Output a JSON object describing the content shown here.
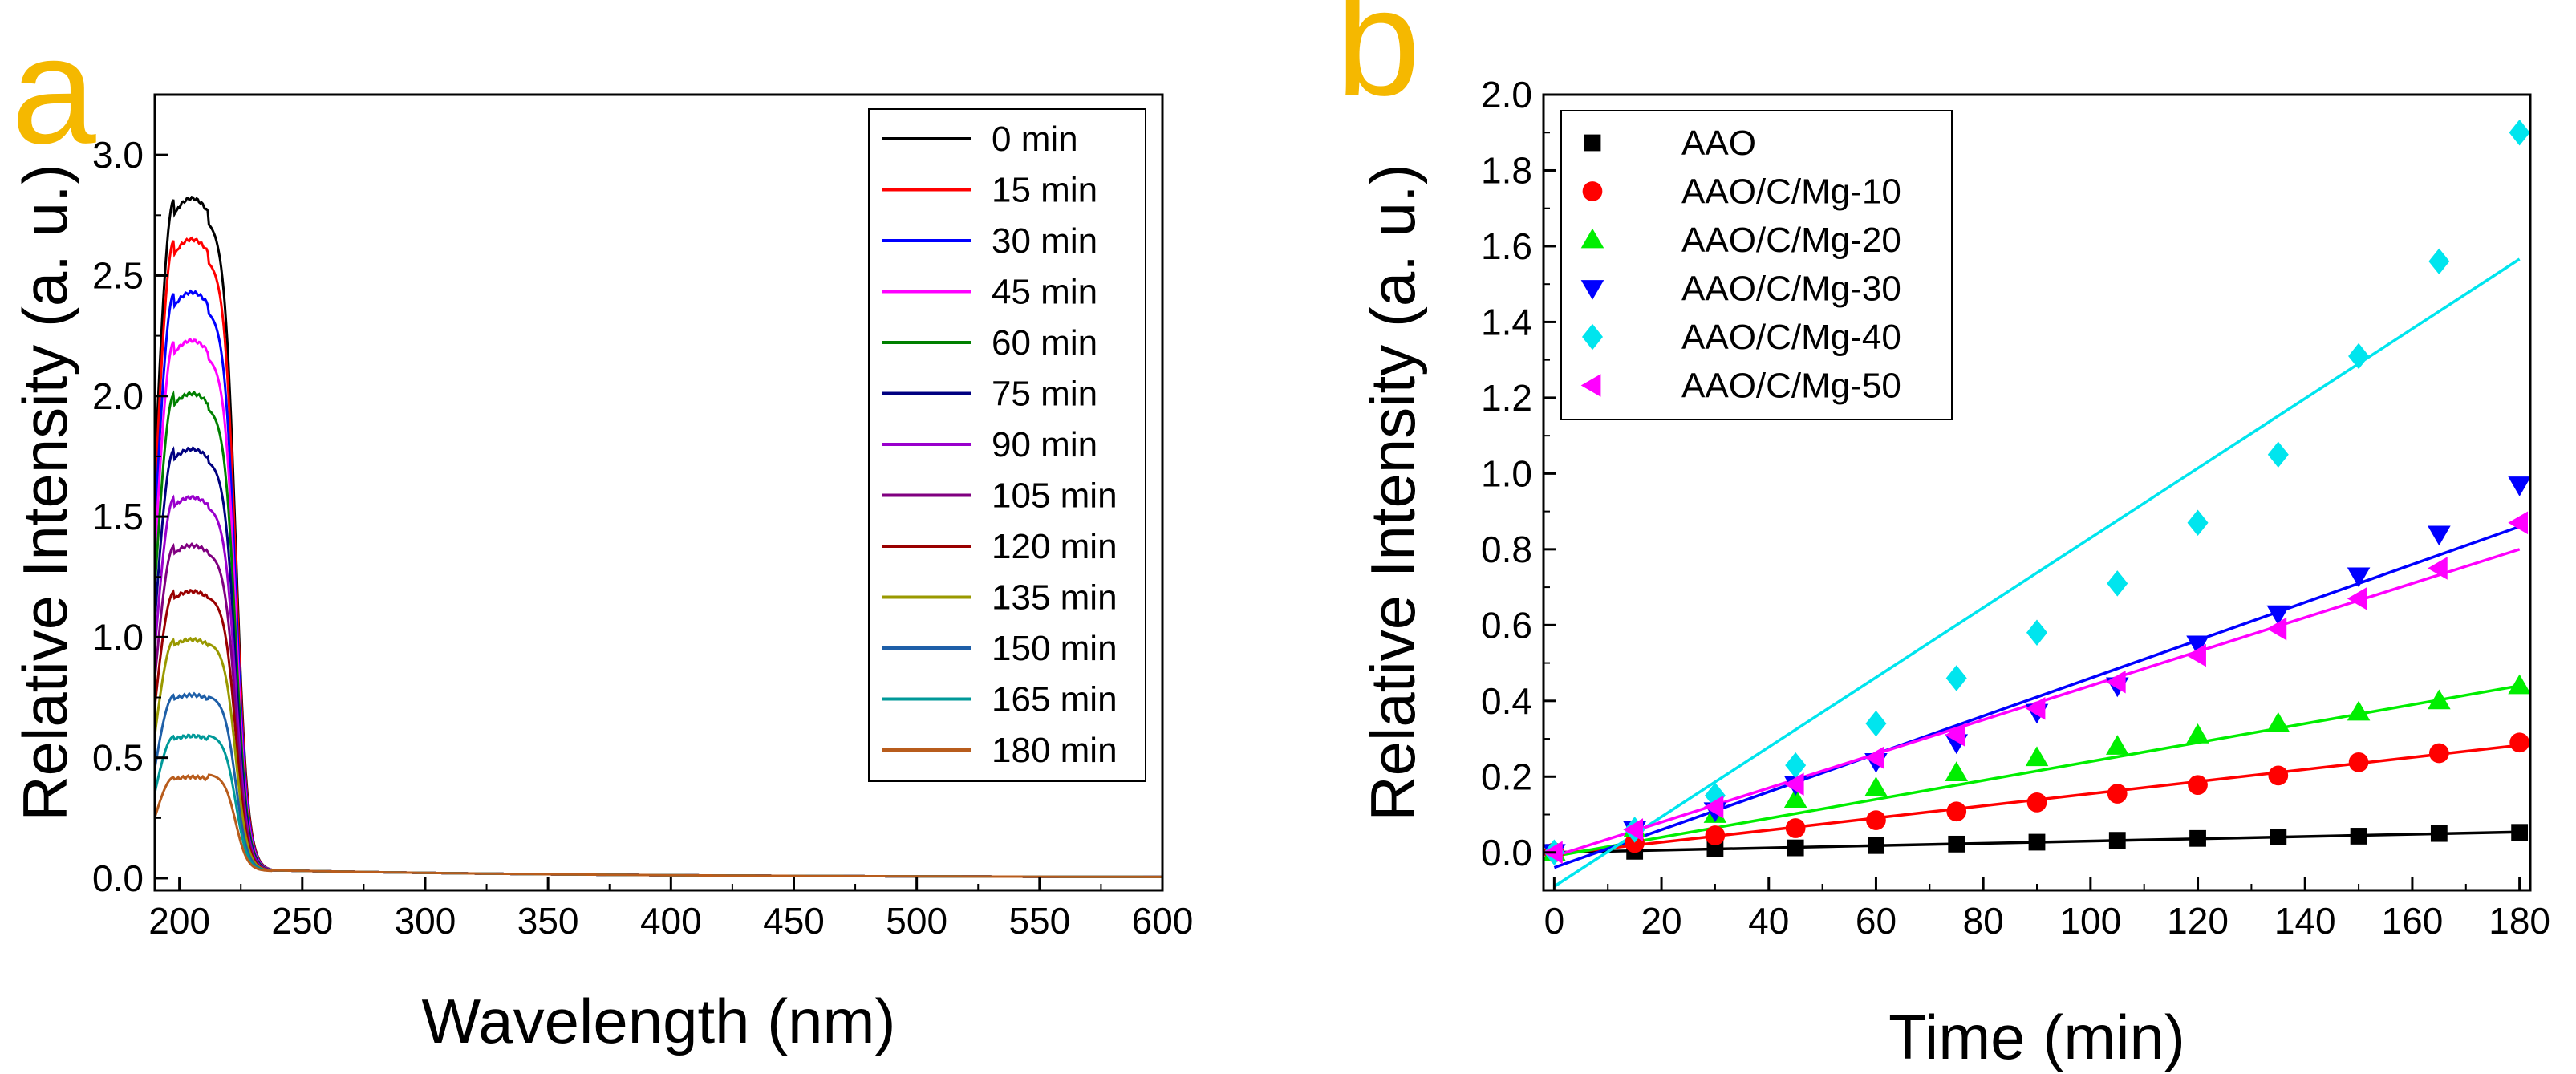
{
  "figure": {
    "panel_a_letter": "a",
    "panel_b_letter": "b",
    "accent_color": "#f5b800"
  },
  "chart_data": [
    {
      "id": "a",
      "type": "line",
      "title": "",
      "xlabel": "Wavelength (nm)",
      "ylabel": "Relative Intensity (a. u.)",
      "xlim": [
        190,
        600
      ],
      "ylim": [
        -0.05,
        3.25
      ],
      "xticks": [
        200,
        250,
        300,
        350,
        400,
        450,
        500,
        550,
        600
      ],
      "yticks": [
        0.0,
        0.5,
        1.0,
        1.5,
        2.0,
        2.5,
        3.0
      ],
      "xtick_labels": [
        "200",
        "250",
        "300",
        "350",
        "400",
        "450",
        "500",
        "550",
        "600"
      ],
      "ytick_labels": [
        "0.0",
        "0.5",
        "1.0",
        "1.5",
        "2.0",
        "2.5",
        "3.0"
      ],
      "grid": false,
      "legend_position": "top-right",
      "series": [
        {
          "name": "0 min",
          "color": "#000000",
          "peak": 2.82
        },
        {
          "name": "15 min",
          "color": "#ff0000",
          "peak": 2.65
        },
        {
          "name": "30 min",
          "color": "#0000ff",
          "peak": 2.43
        },
        {
          "name": "45 min",
          "color": "#ff00ff",
          "peak": 2.23
        },
        {
          "name": "60 min",
          "color": "#008000",
          "peak": 2.01
        },
        {
          "name": "75 min",
          "color": "#000080",
          "peak": 1.78
        },
        {
          "name": "90 min",
          "color": "#9900cc",
          "peak": 1.58
        },
        {
          "name": "105 min",
          "color": "#800080",
          "peak": 1.38
        },
        {
          "name": "120 min",
          "color": "#990000",
          "peak": 1.19
        },
        {
          "name": "135 min",
          "color": "#999900",
          "peak": 0.99
        },
        {
          "name": "150 min",
          "color": "#1e5fa8",
          "peak": 0.76
        },
        {
          "name": "165 min",
          "color": "#009999",
          "peak": 0.59
        },
        {
          "name": "180 min",
          "color": "#b85c1c",
          "peak": 0.42
        }
      ]
    },
    {
      "id": "b",
      "type": "scatter",
      "title": "",
      "xlabel": "Time (min)",
      "ylabel": "Relative Intensity (a. u.)",
      "xlim": [
        -2,
        182
      ],
      "ylim": [
        -0.1,
        2.0
      ],
      "xticks": [
        0,
        20,
        40,
        60,
        80,
        100,
        120,
        140,
        160,
        180
      ],
      "yticks": [
        0.0,
        0.2,
        0.4,
        0.6,
        0.8,
        1.0,
        1.2,
        1.4,
        1.6,
        1.8,
        2.0
      ],
      "xtick_labels": [
        "0",
        "20",
        "40",
        "60",
        "80",
        "100",
        "120",
        "140",
        "160",
        "180"
      ],
      "ytick_labels": [
        "0.0",
        "0.2",
        "0.4",
        "0.6",
        "0.8",
        "1.0",
        "1.2",
        "1.4",
        "1.6",
        "1.8",
        "2.0"
      ],
      "grid": false,
      "legend_position": "top-left",
      "x": [
        0,
        15,
        30,
        45,
        60,
        75,
        90,
        105,
        120,
        135,
        150,
        165,
        180
      ],
      "series": [
        {
          "name": "AAO",
          "marker": "square",
          "color": "#000000",
          "values": [
            0.0,
            0.003,
            0.009,
            0.012,
            0.018,
            0.022,
            0.027,
            0.032,
            0.037,
            0.041,
            0.043,
            0.05,
            0.053
          ],
          "fit": [
            0.0,
            0.0003
          ]
        },
        {
          "name": "AAO/C/Mg-10",
          "marker": "circle",
          "color": "#ff0000",
          "values": [
            0.0,
            0.025,
            0.045,
            0.064,
            0.085,
            0.108,
            0.132,
            0.155,
            0.178,
            0.203,
            0.238,
            0.262,
            0.29
          ],
          "fit": [
            -0.005,
            0.0016
          ]
        },
        {
          "name": "AAO/C/Mg-20",
          "marker": "triangle-up",
          "color": "#00ee00",
          "values": [
            0.0,
            0.062,
            0.1,
            0.14,
            0.17,
            0.21,
            0.25,
            0.28,
            0.31,
            0.34,
            0.37,
            0.4,
            0.44
          ],
          "fit": [
            -0.01,
            0.0025
          ]
        },
        {
          "name": "AAO/C/Mg-30",
          "marker": "triangle-down",
          "color": "#0000ff",
          "values": [
            0.0,
            0.06,
            0.11,
            0.18,
            0.24,
            0.29,
            0.37,
            0.44,
            0.55,
            0.63,
            0.73,
            0.84,
            0.97
          ],
          "fit": [
            -0.04,
            0.005
          ]
        },
        {
          "name": "AAO/C/Mg-40",
          "marker": "diamond",
          "color": "#00e5ee",
          "values": [
            0.0,
            0.06,
            0.15,
            0.23,
            0.34,
            0.46,
            0.58,
            0.71,
            0.87,
            1.05,
            1.31,
            1.56,
            1.9
          ],
          "fit": [
            -0.09,
            0.0092
          ]
        },
        {
          "name": "AAO/C/Mg-50",
          "marker": "triangle-left",
          "color": "#ff00ff",
          "values": [
            0.0,
            0.06,
            0.12,
            0.18,
            0.25,
            0.31,
            0.38,
            0.45,
            0.52,
            0.59,
            0.67,
            0.75,
            0.87
          ],
          "fit": [
            -0.01,
            0.0045
          ]
        }
      ]
    }
  ]
}
